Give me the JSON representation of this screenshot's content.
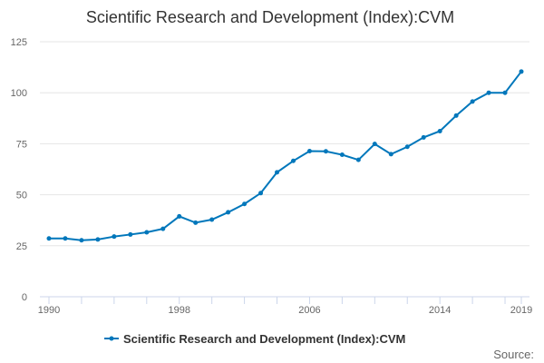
{
  "chart_data": {
    "type": "line",
    "title": "Scientific Research and Development (Index):CVM",
    "xlabel": "",
    "ylabel": "",
    "x": [
      1990,
      1991,
      1992,
      1993,
      1994,
      1995,
      1996,
      1997,
      1998,
      1999,
      2000,
      2001,
      2002,
      2003,
      2004,
      2005,
      2006,
      2007,
      2008,
      2009,
      2010,
      2011,
      2012,
      2013,
      2014,
      2015,
      2016,
      2017,
      2018,
      2019
    ],
    "series": [
      {
        "name": "Scientific Research and Development (Index):CVM",
        "color": "#0077bb",
        "values": [
          28.6,
          28.6,
          27.7,
          28.1,
          29.5,
          30.5,
          31.6,
          33.3,
          39.4,
          36.3,
          37.8,
          41.4,
          45.5,
          50.8,
          61.0,
          66.6,
          71.4,
          71.3,
          69.6,
          67.1,
          74.9,
          69.9,
          73.5,
          78.1,
          81.2,
          88.8,
          95.7,
          100.0,
          100.0,
          110.4
        ]
      }
    ],
    "xlim": [
      1990,
      2019
    ],
    "ylim": [
      0,
      125
    ],
    "x_ticks": [
      "1990",
      "1998",
      "2006",
      "2014",
      "2019"
    ],
    "y_ticks": [
      "0",
      "25",
      "50",
      "75",
      "100",
      "125"
    ],
    "grid": "horizontal",
    "legend_position": "bottom",
    "source_label": "Source:"
  }
}
